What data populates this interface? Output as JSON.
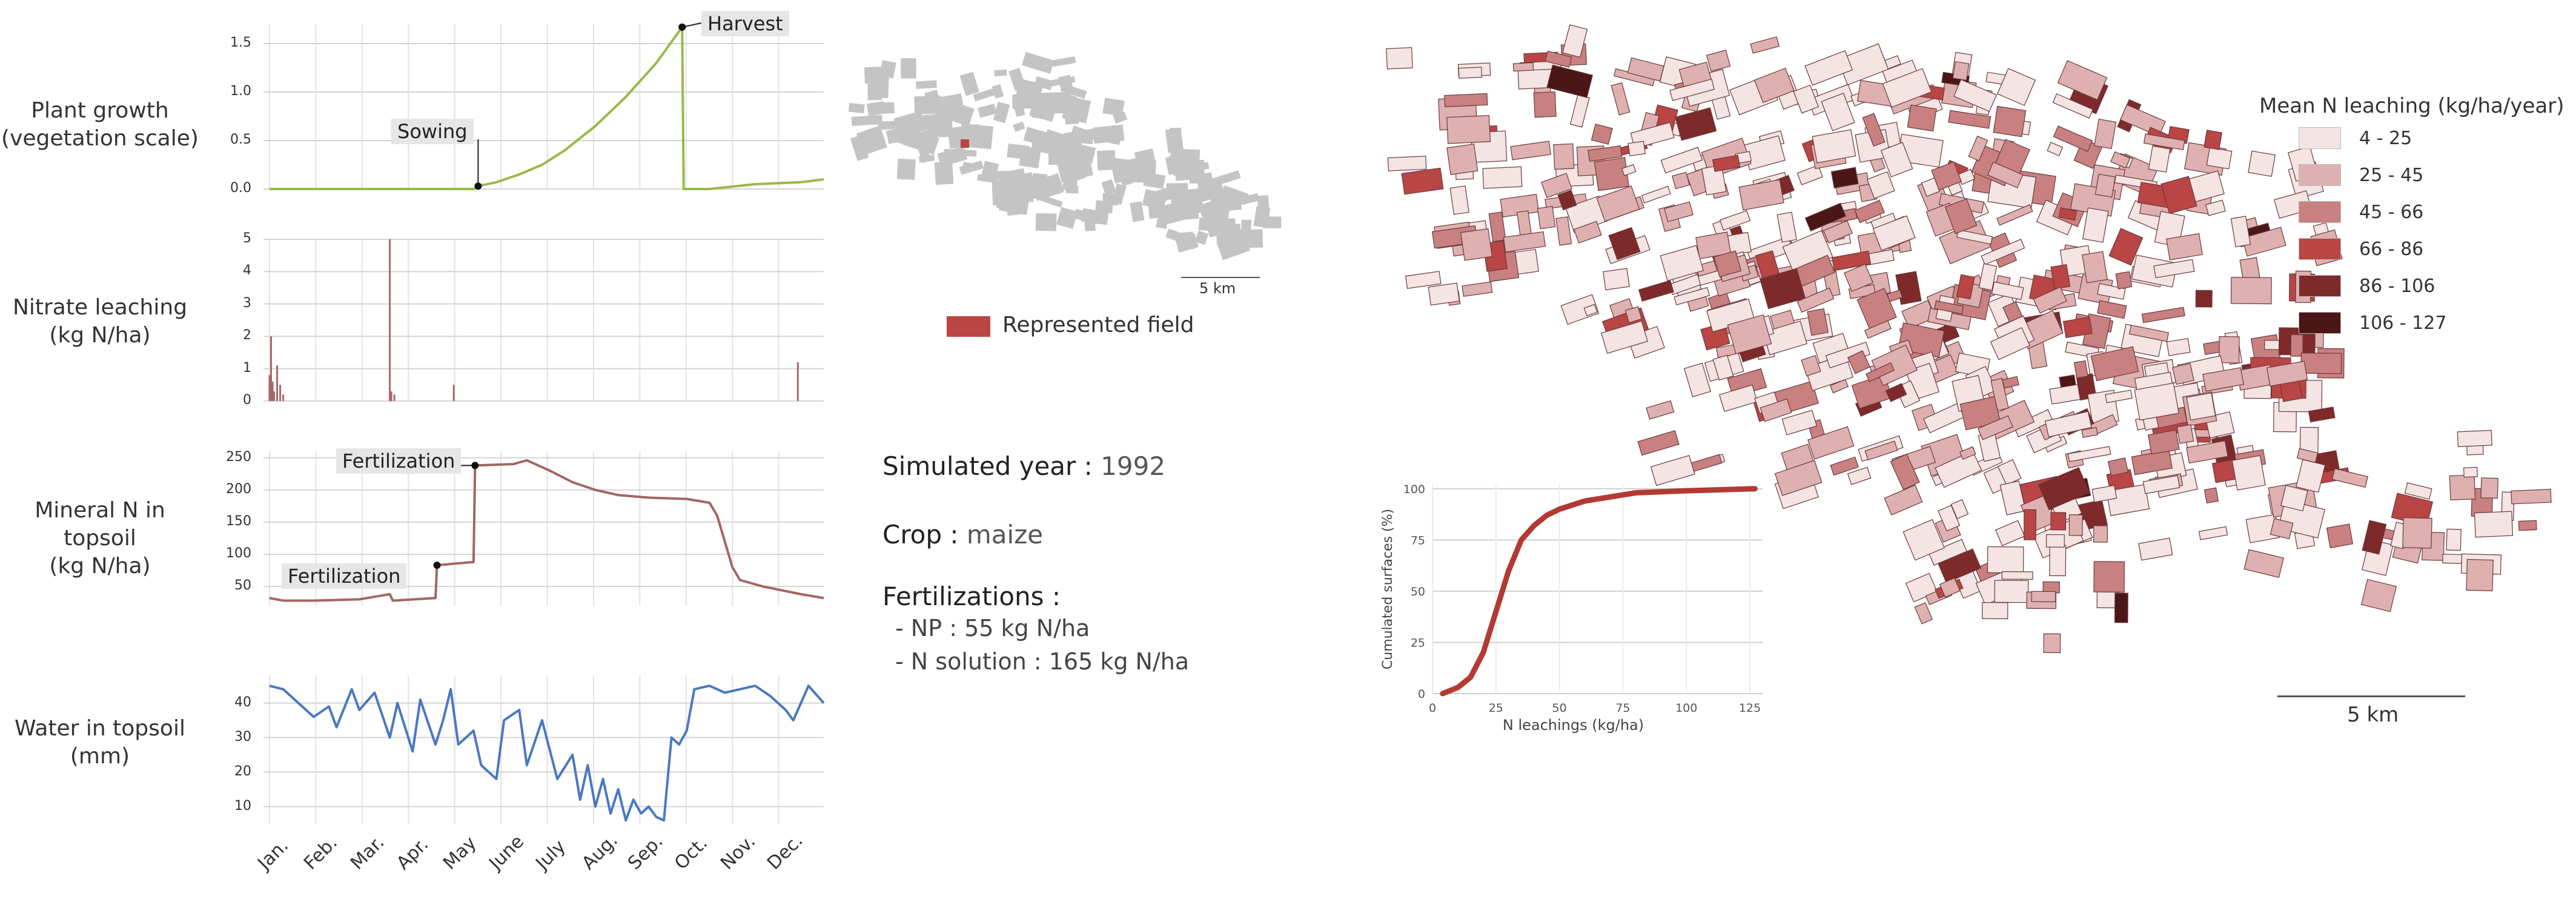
{
  "colors": {
    "plant": "#9ab84a",
    "nitrate": "#a8686a",
    "mineral": "#a2675f",
    "water": "#4a78c2",
    "cumulative": "#b33a33",
    "represented_field": "#b94545",
    "field_grey": "#c4c4c4",
    "field_stroke": "#6a3a3c"
  },
  "panels": {
    "plant": {
      "label": "Plant growth\n(vegetation scale)"
    },
    "nitrate": {
      "label": "Nitrate leaching\n(kg N/ha)"
    },
    "mineral": {
      "label": "Mineral N in topsoil\n(kg N/ha)"
    },
    "water": {
      "label": "Water in topsoil\n(mm)"
    }
  },
  "annotations": {
    "harvest": "Harvest",
    "sowing": "Sowing",
    "fertilization_1": "Fertilization",
    "fertilization_2": "Fertilization"
  },
  "months": [
    "Jan.",
    "Feb.",
    "Mar.",
    "Apr.",
    "May",
    "June",
    "July",
    "Aug.",
    "Sep.",
    "Oct.",
    "Nov.",
    "Dec."
  ],
  "info": {
    "year_label": "Simulated year :",
    "year_value": "1992",
    "crop_label": "Crop :",
    "crop_value": "maize",
    "fert_label": "Fertilizations :",
    "fert_np": "- NP : 55 kg N/ha",
    "fert_n": "- N solution : 165 kg N/ha"
  },
  "location_map": {
    "scale_label": "5 km",
    "legend_label": "Represented field"
  },
  "main_map": {
    "scale_label": "5 km",
    "legend_title": "Mean N leaching (kg/ha/year)",
    "legend": [
      {
        "label": "4 - 25",
        "color": "#f4e4e4"
      },
      {
        "label": "25 - 45",
        "color": "#dfb0b0"
      },
      {
        "label": "45 - 66",
        "color": "#c98080"
      },
      {
        "label": "66 - 86",
        "color": "#b94545"
      },
      {
        "label": "86 - 106",
        "color": "#7e2a2a"
      },
      {
        "label": "106 - 127",
        "color": "#4a1616"
      }
    ]
  },
  "chart_data": [
    {
      "type": "line",
      "name": "plant_growth",
      "x_unit": "day of year",
      "ylim": [
        0,
        1.7
      ],
      "yticks": [
        "0.0",
        "0.5",
        "1.0",
        "1.5"
      ],
      "x": [
        1,
        135,
        138,
        150,
        165,
        180,
        195,
        215,
        235,
        255,
        272,
        273,
        290,
        320,
        350,
        365
      ],
      "y": [
        0.0,
        0.0,
        0.03,
        0.07,
        0.15,
        0.25,
        0.4,
        0.65,
        0.95,
        1.3,
        1.67,
        0.0,
        0.0,
        0.05,
        0.07,
        0.1
      ]
    },
    {
      "type": "bar",
      "name": "nitrate_leaching",
      "x_unit": "day of year",
      "ylim": [
        0,
        5
      ],
      "yticks": [
        "0",
        "1",
        "2",
        "3",
        "4",
        "5"
      ],
      "x": [
        1,
        2,
        3,
        4,
        6,
        8,
        10,
        80,
        81,
        83,
        122,
        348
      ],
      "y": [
        0.8,
        2.0,
        0.6,
        0.3,
        1.1,
        0.5,
        0.2,
        5.0,
        0.3,
        0.2,
        0.5,
        1.2
      ]
    },
    {
      "type": "line",
      "name": "mineral_n",
      "x_unit": "day of year",
      "ylim": [
        20,
        260
      ],
      "yticks": [
        "50",
        "100",
        "150",
        "200",
        "250"
      ],
      "x": [
        1,
        10,
        30,
        60,
        80,
        82,
        110,
        111,
        135,
        136,
        160,
        161,
        170,
        185,
        200,
        215,
        230,
        250,
        275,
        290,
        295,
        300,
        305,
        310,
        325,
        350,
        365
      ],
      "y": [
        32,
        28,
        28,
        30,
        38,
        28,
        32,
        83,
        88,
        238,
        240,
        240,
        246,
        230,
        212,
        200,
        192,
        188,
        186,
        180,
        160,
        120,
        80,
        60,
        50,
        38,
        32
      ]
    },
    {
      "type": "line",
      "name": "water_topsoil",
      "x_unit": "day of year",
      "ylim": [
        5,
        48
      ],
      "yticks": [
        "10",
        "20",
        "30",
        "40"
      ],
      "x": [
        1,
        10,
        20,
        30,
        40,
        45,
        55,
        60,
        70,
        80,
        85,
        95,
        100,
        110,
        115,
        120,
        125,
        135,
        140,
        150,
        155,
        165,
        170,
        180,
        190,
        200,
        205,
        210,
        215,
        220,
        225,
        230,
        235,
        240,
        245,
        250,
        255,
        260,
        265,
        270,
        275,
        280,
        290,
        300,
        310,
        320,
        330,
        340,
        345,
        355,
        365
      ],
      "y": [
        45,
        44,
        40,
        36,
        39,
        33,
        44,
        38,
        43,
        30,
        40,
        26,
        41,
        28,
        35,
        44,
        28,
        32,
        22,
        18,
        35,
        38,
        22,
        35,
        18,
        25,
        12,
        22,
        10,
        18,
        8,
        15,
        6,
        12,
        8,
        10,
        7,
        6,
        30,
        28,
        32,
        44,
        45,
        43,
        44,
        45,
        42,
        38,
        35,
        45,
        40
      ]
    },
    {
      "type": "line",
      "name": "cumulated_surfaces",
      "xlabel": "N leachings (kg/ha)",
      "ylabel": "Cumulated surfaces (%)",
      "xlim": [
        0,
        130
      ],
      "ylim": [
        0,
        102
      ],
      "xticks": [
        "0",
        "25",
        "50",
        "75",
        "100",
        "125"
      ],
      "yticks": [
        "0",
        "25",
        "50",
        "75",
        "100"
      ],
      "x": [
        4,
        10,
        15,
        20,
        25,
        30,
        35,
        40,
        45,
        50,
        55,
        60,
        65,
        70,
        80,
        100,
        127
      ],
      "y": [
        0,
        3,
        8,
        20,
        40,
        60,
        75,
        82,
        87,
        90,
        92,
        94,
        95,
        96,
        98,
        99,
        100
      ]
    }
  ]
}
